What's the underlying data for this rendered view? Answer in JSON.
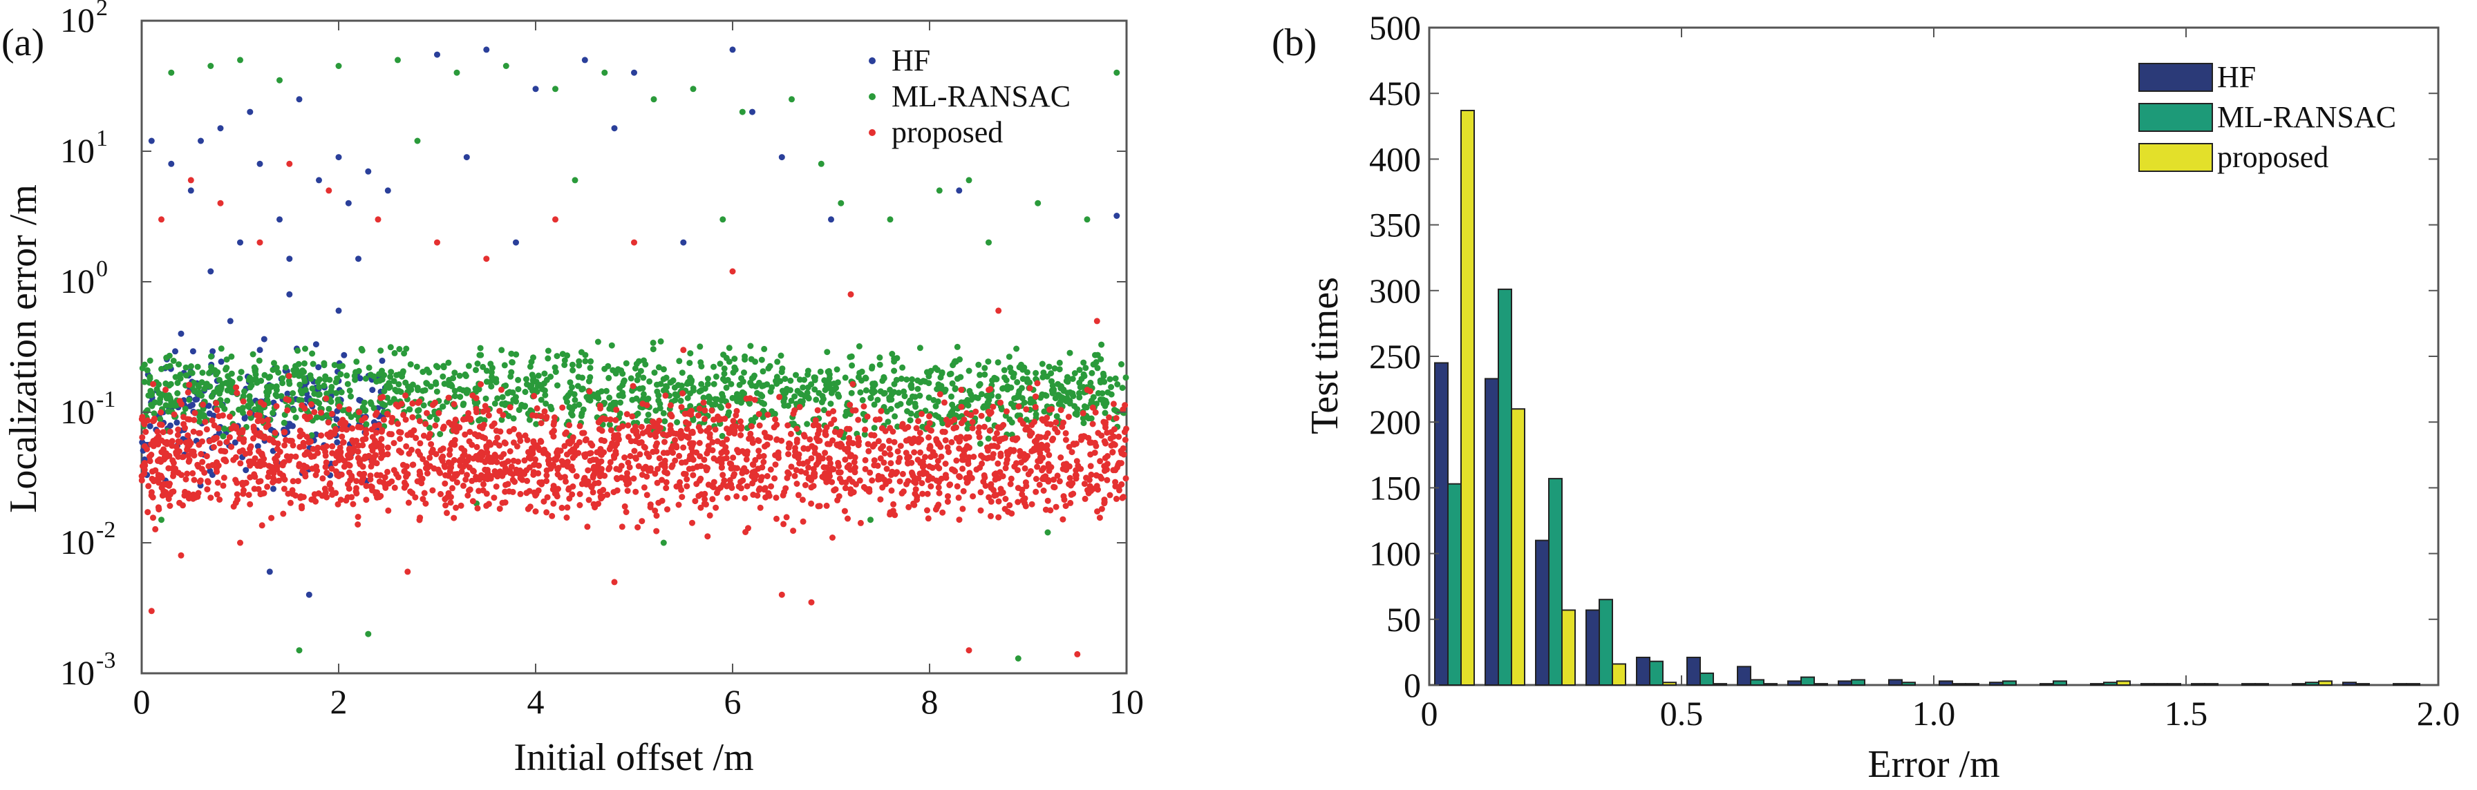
{
  "chart_data": [
    {
      "type": "scatter",
      "panel_label": "(a)",
      "xlabel": "Initial offset /m",
      "ylabel": "Localization error /m",
      "xlim": [
        0,
        10
      ],
      "ylim": [
        0.001,
        100
      ],
      "yscale": "log",
      "xticks": [
        0,
        2,
        4,
        6,
        8,
        10
      ],
      "xtick_labels": [
        "0",
        "2",
        "4",
        "6",
        "8",
        "10"
      ],
      "yticks": [
        0.001,
        0.01,
        0.1,
        1,
        10,
        100
      ],
      "ytick_labels": [
        {
          "base": "10",
          "exp": "-3"
        },
        {
          "base": "10",
          "exp": "-2"
        },
        {
          "base": "10",
          "exp": "-1"
        },
        {
          "base": "10",
          "exp": "0"
        },
        {
          "base": "10",
          "exp": "1"
        },
        {
          "base": "10",
          "exp": "2"
        }
      ],
      "legend_position": "top-right",
      "series": [
        {
          "name": "HF",
          "color": "#2a3f9a",
          "points": [
            [
              0.1,
              12
            ],
            [
              0.3,
              8
            ],
            [
              0.5,
              5
            ],
            [
              0.6,
              12
            ],
            [
              0.8,
              15
            ],
            [
              1.0,
              2
            ],
            [
              1.1,
              20
            ],
            [
              1.2,
              8
            ],
            [
              1.4,
              3
            ],
            [
              1.5,
              1.5
            ],
            [
              1.6,
              25
            ],
            [
              1.8,
              6
            ],
            [
              2.0,
              9
            ],
            [
              2.1,
              4
            ],
            [
              2.3,
              7
            ],
            [
              2.5,
              5
            ],
            [
              3.0,
              55
            ],
            [
              3.5,
              60
            ],
            [
              4.0,
              30
            ],
            [
              4.5,
              50
            ],
            [
              5.0,
              40
            ],
            [
              5.5,
              2
            ],
            [
              6.0,
              60
            ],
            [
              6.5,
              9
            ],
            [
              1.7,
              0.004
            ],
            [
              1.3,
              0.006
            ],
            [
              0.9,
              0.5
            ],
            [
              1.2,
              0.3
            ],
            [
              0.4,
              0.4
            ],
            [
              2.0,
              0.6
            ],
            [
              1.5,
              0.8
            ],
            [
              0.7,
              1.2
            ],
            [
              2.2,
              1.5
            ],
            [
              3.3,
              9
            ],
            [
              4.8,
              15
            ],
            [
              6.2,
              20
            ],
            [
              7.0,
              3
            ],
            [
              8.3,
              5
            ],
            [
              9.9,
              3.2
            ],
            [
              3.8,
              2
            ]
          ],
          "n_fill": 220,
          "fill_x_range": [
            0,
            2.5
          ],
          "fill_y_range": [
            0.02,
            0.5
          ]
        },
        {
          "name": "ML-RANSAC",
          "color": "#2a9a3a",
          "points": [
            [
              0.3,
              40
            ],
            [
              0.7,
              45
            ],
            [
              1.0,
              50
            ],
            [
              1.4,
              35
            ],
            [
              2.0,
              45
            ],
            [
              2.6,
              50
            ],
            [
              3.2,
              40
            ],
            [
              3.7,
              45
            ],
            [
              4.2,
              30
            ],
            [
              4.7,
              40
            ],
            [
              5.2,
              25
            ],
            [
              5.6,
              30
            ],
            [
              6.1,
              20
            ],
            [
              6.6,
              25
            ],
            [
              7.1,
              4
            ],
            [
              7.6,
              3
            ],
            [
              8.1,
              5
            ],
            [
              8.6,
              2
            ],
            [
              9.1,
              4
            ],
            [
              9.6,
              3
            ],
            [
              9.9,
              40
            ],
            [
              1.6,
              0.0015
            ],
            [
              2.3,
              0.002
            ],
            [
              8.9,
              0.0013
            ],
            [
              3.4,
              0.02
            ],
            [
              5.3,
              0.01
            ],
            [
              7.4,
              0.015
            ],
            [
              9.2,
              0.012
            ],
            [
              0.2,
              0.015
            ],
            [
              4.4,
              6
            ],
            [
              6.9,
              8
            ],
            [
              2.8,
              12
            ],
            [
              5.9,
              3
            ],
            [
              8.4,
              6
            ]
          ],
          "n_fill": 1400,
          "fill_x_range": [
            0,
            10
          ],
          "fill_y_range": [
            0.05,
            0.4
          ]
        },
        {
          "name": "proposed",
          "color": "#e53030",
          "points": [
            [
              0.2,
              3
            ],
            [
              0.5,
              6
            ],
            [
              0.8,
              4
            ],
            [
              1.2,
              2
            ],
            [
              1.5,
              8
            ],
            [
              1.9,
              5
            ],
            [
              2.4,
              3
            ],
            [
              3.0,
              2
            ],
            [
              3.5,
              1.5
            ],
            [
              4.2,
              3
            ],
            [
              5.0,
              2
            ],
            [
              6.0,
              1.2
            ],
            [
              6.5,
              0.004
            ],
            [
              6.8,
              0.0035
            ],
            [
              8.4,
              0.0015
            ],
            [
              9.5,
              0.0014
            ],
            [
              0.1,
              0.003
            ],
            [
              0.4,
              0.008
            ],
            [
              1.0,
              0.01
            ],
            [
              2.7,
              0.006
            ],
            [
              4.8,
              0.005
            ],
            [
              7.2,
              0.8
            ],
            [
              8.7,
              0.6
            ],
            [
              9.7,
              0.5
            ],
            [
              5.5,
              0.3
            ]
          ],
          "n_fill": 2200,
          "fill_x_range": [
            0,
            10
          ],
          "fill_y_range": [
            0.01,
            0.2
          ]
        }
      ]
    },
    {
      "type": "bar",
      "panel_label": "(b)",
      "xlabel": "Error /m",
      "ylabel": "Test times",
      "xlim": [
        0,
        2.0
      ],
      "ylim": [
        0,
        500
      ],
      "xticks": [
        0,
        0.5,
        1.0,
        1.5,
        2.0
      ],
      "xtick_labels": [
        "0",
        "0.5",
        "1.0",
        "1.5",
        "2.0"
      ],
      "yticks": [
        0,
        50,
        100,
        150,
        200,
        250,
        300,
        350,
        400,
        450,
        500
      ],
      "ytick_labels": [
        "0",
        "50",
        "100",
        "150",
        "200",
        "250",
        "300",
        "350",
        "400",
        "450",
        "500"
      ],
      "bin_centers": [
        0.05,
        0.15,
        0.25,
        0.35,
        0.45,
        0.55,
        0.65,
        0.75,
        0.85,
        0.95,
        1.05,
        1.15,
        1.25,
        1.35,
        1.45,
        1.55,
        1.65,
        1.75,
        1.85,
        1.95
      ],
      "bar_width": 0.026,
      "legend_position": "top-right",
      "series": [
        {
          "name": "HF",
          "color": "#2b3a78",
          "values": [
            245,
            233,
            110,
            57,
            21,
            21,
            14,
            3,
            3,
            4,
            3,
            2,
            1,
            1,
            1,
            1,
            1,
            1,
            2,
            1
          ]
        },
        {
          "name": "ML-RANSAC",
          "color": "#1d9a78",
          "values": [
            153,
            301,
            157,
            65,
            18,
            9,
            4,
            6,
            4,
            2,
            1,
            3,
            3,
            2,
            1,
            1,
            1,
            2,
            1,
            1
          ]
        },
        {
          "name": "proposed",
          "color": "#e3e02a",
          "values": [
            437,
            210,
            57,
            16,
            2,
            1,
            1,
            1,
            0,
            0,
            1,
            0,
            0,
            3,
            1,
            0,
            0,
            3,
            0,
            0
          ]
        }
      ]
    }
  ]
}
